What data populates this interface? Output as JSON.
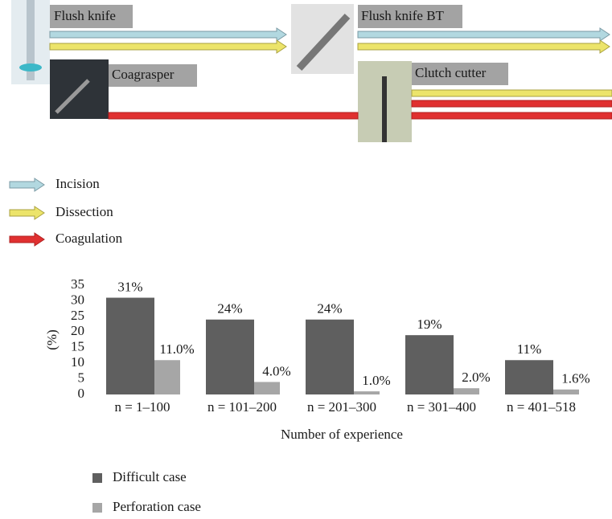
{
  "diagram": {
    "tools": [
      "Flush knife",
      "Flush knife BT",
      "Coagrasper",
      "Clutch cutter"
    ],
    "legend": [
      "Incision",
      "Dissection",
      "Coagulation"
    ]
  },
  "chart_data": {
    "type": "bar",
    "categories": [
      "n = 1–100",
      "n = 101–200",
      "n = 201–300",
      "n = 301–400",
      "n = 401–518"
    ],
    "series": [
      {
        "name": "Difficult case",
        "color": "#5f5f5f",
        "values": [
          31,
          24,
          24,
          19,
          11
        ],
        "value_labels": [
          "31%",
          "24%",
          "24%",
          "19%",
          "11%"
        ]
      },
      {
        "name": "Perforation case",
        "color": "#a6a6a6",
        "values": [
          11,
          4,
          1,
          2,
          1.6
        ],
        "value_labels": [
          "11.0%",
          "4.0%",
          "1.0%",
          "2.0%",
          "1.6%"
        ]
      }
    ],
    "ylabel": "(%)",
    "xlabel": "Number of experience",
    "ylim": [
      0,
      35
    ],
    "yticks": [
      0,
      5,
      10,
      15,
      20,
      25,
      30,
      35
    ]
  }
}
